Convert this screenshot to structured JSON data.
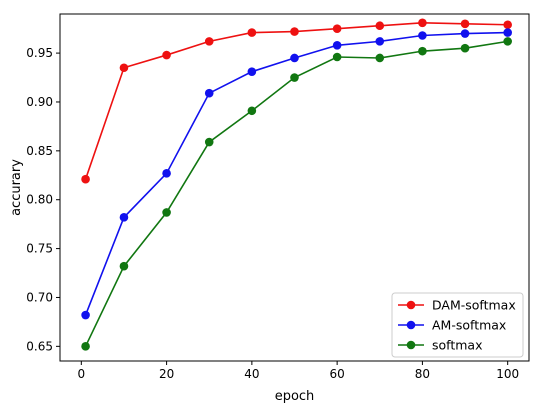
{
  "chart_data": {
    "type": "line",
    "title": "",
    "xlabel": "epoch",
    "ylabel": "accurary",
    "xlim": [
      -5,
      105
    ],
    "ylim": [
      0.635,
      0.99
    ],
    "xticks": [
      0,
      20,
      40,
      60,
      80,
      100
    ],
    "yticks": [
      0.65,
      0.7,
      0.75,
      0.8,
      0.85,
      0.9,
      0.95
    ],
    "grid": false,
    "legend_position": "lower-right",
    "series": [
      {
        "name": "DAM-softmax",
        "color": "#ee1111",
        "x": [
          1,
          10,
          20,
          30,
          40,
          50,
          60,
          70,
          80,
          90,
          100
        ],
        "y": [
          0.821,
          0.935,
          0.948,
          0.962,
          0.971,
          0.972,
          0.975,
          0.978,
          0.981,
          0.98,
          0.979
        ]
      },
      {
        "name": "AM-softmax",
        "color": "#1111ee",
        "x": [
          1,
          10,
          20,
          30,
          40,
          50,
          60,
          70,
          80,
          90,
          100
        ],
        "y": [
          0.682,
          0.782,
          0.827,
          0.909,
          0.931,
          0.945,
          0.958,
          0.962,
          0.968,
          0.97,
          0.971
        ]
      },
      {
        "name": "softmax",
        "color": "#117711",
        "x": [
          1,
          10,
          20,
          30,
          40,
          50,
          60,
          70,
          80,
          90,
          100
        ],
        "y": [
          0.65,
          0.732,
          0.787,
          0.859,
          0.891,
          0.925,
          0.946,
          0.945,
          0.952,
          0.955,
          0.962
        ]
      }
    ]
  }
}
